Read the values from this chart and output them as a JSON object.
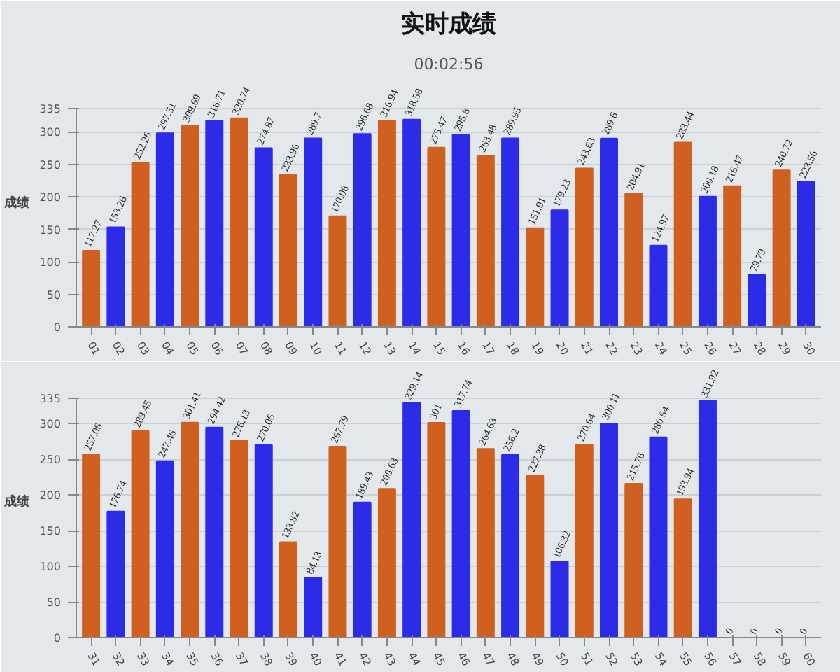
{
  "chart_data": [
    {
      "type": "bar",
      "title": "实时成绩",
      "subtitle": "00:02:56",
      "ylabel": "成绩",
      "categories": [
        "01",
        "02",
        "03",
        "04",
        "05",
        "06",
        "07",
        "08",
        "09",
        "10",
        "11",
        "12",
        "13",
        "14",
        "15",
        "16",
        "17",
        "18",
        "19",
        "20",
        "21",
        "22",
        "23",
        "24",
        "25",
        "26",
        "27",
        "28",
        "29",
        "30"
      ],
      "values": [
        117.27,
        153.26,
        252.26,
        297.51,
        309.69,
        316.71,
        320.74,
        274.87,
        233.96,
        289.7,
        170.08,
        296.68,
        316.94,
        318.58,
        275.47,
        295.8,
        263.48,
        289.95,
        151.91,
        179.23,
        243.63,
        289.6,
        204.91,
        124.97,
        283.44,
        200.18,
        216.47,
        79.79,
        240.72,
        223.56
      ],
      "colors": [
        "#d0601f",
        "#2b2be8",
        "#d0601f",
        "#2b2be8",
        "#d0601f",
        "#2b2be8",
        "#d0601f",
        "#2b2be8",
        "#d0601f",
        "#2b2be8",
        "#d0601f",
        "#2b2be8",
        "#d0601f",
        "#2b2be8",
        "#d0601f",
        "#2b2be8",
        "#d0601f",
        "#2b2be8",
        "#d0601f",
        "#2b2be8",
        "#d0601f",
        "#2b2be8",
        "#d0601f",
        "#2b2be8",
        "#d0601f",
        "#2b2be8",
        "#d0601f",
        "#2b2be8",
        "#d0601f",
        "#2b2be8"
      ],
      "ylim": [
        0,
        335
      ],
      "yticks": [
        0,
        50,
        100,
        150,
        200,
        250,
        300,
        335
      ],
      "grid": "y",
      "data_labels": true
    },
    {
      "type": "bar",
      "ylabel": "成绩",
      "categories": [
        "31",
        "32",
        "33",
        "34",
        "35",
        "36",
        "37",
        "38",
        "39",
        "40",
        "41",
        "42",
        "43",
        "44",
        "45",
        "46",
        "47",
        "48",
        "49",
        "50",
        "51",
        "52",
        "53",
        "54",
        "55",
        "56",
        "57",
        "58",
        "59",
        "60"
      ],
      "values": [
        257.06,
        176.74,
        289.45,
        247.46,
        301.41,
        294.42,
        276.13,
        270.06,
        133.82,
        84.13,
        267.79,
        189.43,
        208.63,
        329.14,
        301,
        317.74,
        264.63,
        256.2,
        227.38,
        106.32,
        270.64,
        300.11,
        215.76,
        280.64,
        193.94,
        331.92,
        0,
        0,
        0,
        0
      ],
      "colors": [
        "#d0601f",
        "#2b2be8",
        "#d0601f",
        "#2b2be8",
        "#d0601f",
        "#2b2be8",
        "#d0601f",
        "#2b2be8",
        "#d0601f",
        "#2b2be8",
        "#d0601f",
        "#2b2be8",
        "#d0601f",
        "#2b2be8",
        "#d0601f",
        "#2b2be8",
        "#d0601f",
        "#2b2be8",
        "#d0601f",
        "#2b2be8",
        "#d0601f",
        "#2b2be8",
        "#d0601f",
        "#2b2be8",
        "#d0601f",
        "#2b2be8",
        "#d0601f",
        "#2b2be8",
        "#d0601f",
        "#2b2be8"
      ],
      "ylim": [
        0,
        335
      ],
      "yticks": [
        0,
        50,
        100,
        150,
        200,
        250,
        300,
        335
      ],
      "grid": "y",
      "data_labels": true
    }
  ]
}
